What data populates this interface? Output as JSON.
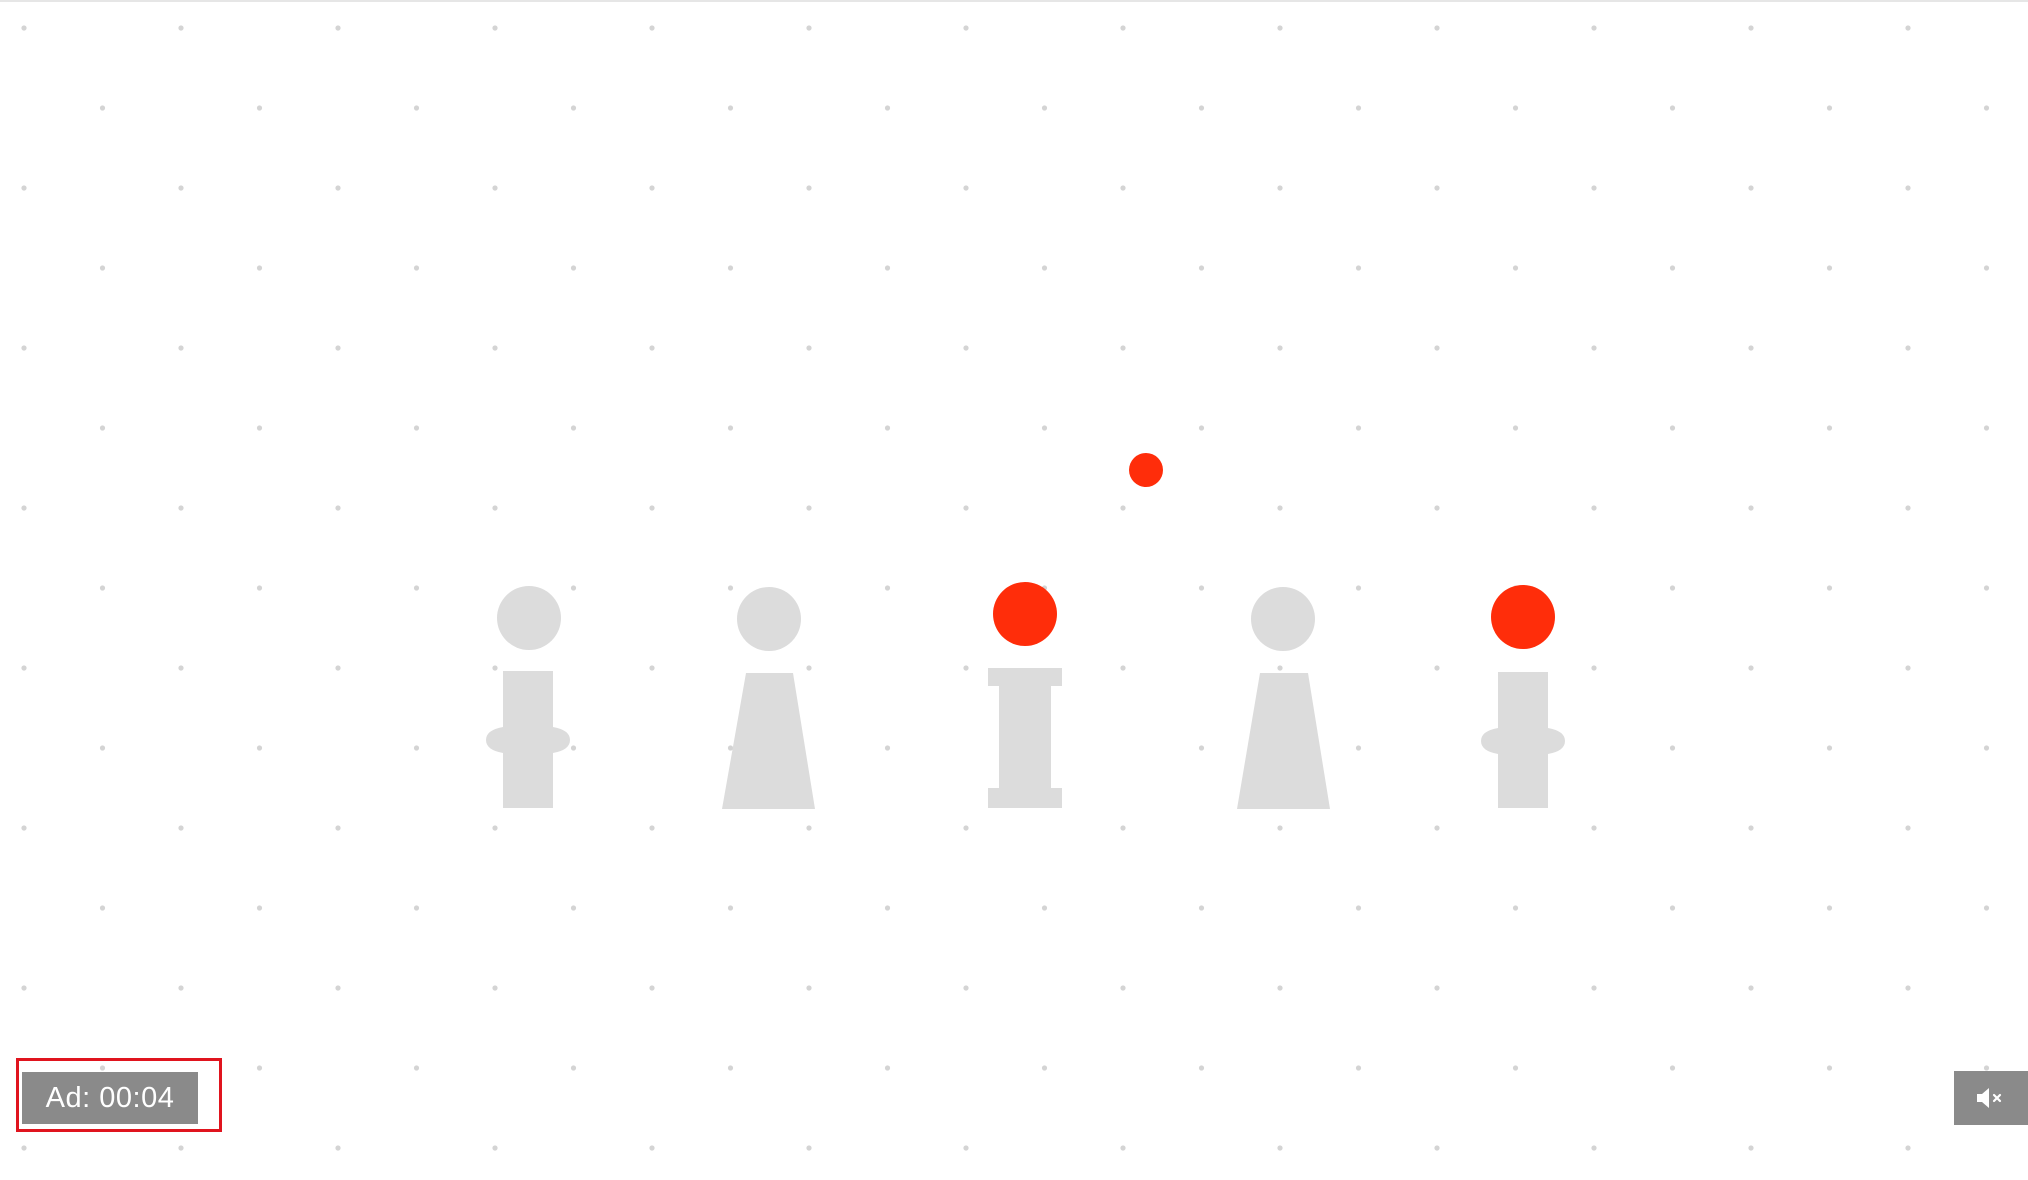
{
  "ad": {
    "label": "Ad: 00:04"
  },
  "controls": {
    "mute_icon": "speaker-muted-icon"
  },
  "colors": {
    "accent_red": "#ff2d0a",
    "figure_gray": "#dcdcdc",
    "dot_gray": "#d4d4d4",
    "badge_gray": "#8a8a8a",
    "highlight_red": "#e0141e"
  }
}
